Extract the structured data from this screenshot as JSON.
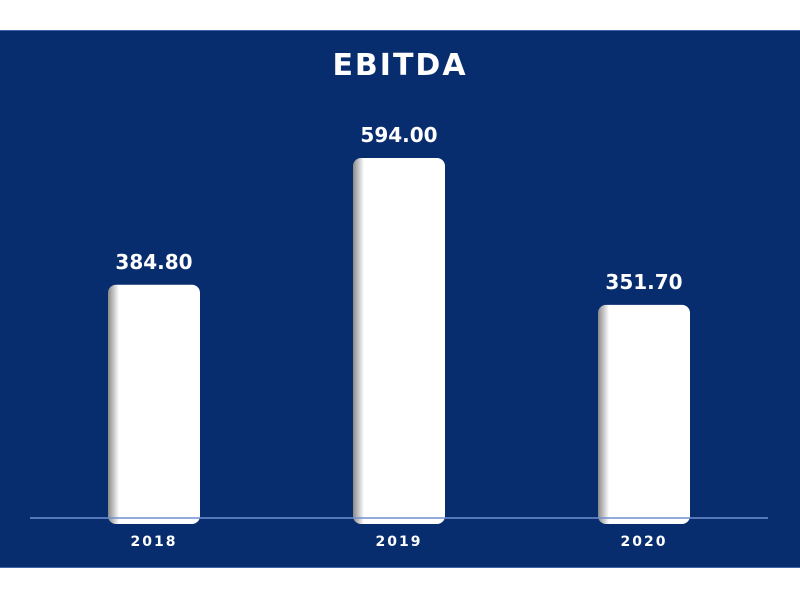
{
  "chart_data": {
    "type": "bar",
    "title": "EBITDA",
    "categories": [
      "2018",
      "2019",
      "2020"
    ],
    "values": [
      384.8,
      594.0,
      351.7
    ],
    "value_labels": [
      "384.80",
      "594.00",
      "351.70"
    ],
    "xlabel": "",
    "ylabel": "",
    "ylim": [
      0,
      660
    ],
    "grid": false,
    "legend": "none",
    "colors": {
      "background": "#082d6e",
      "bar": "#ffffff",
      "axis": "#6f8fd0",
      "text": "#ffffff"
    }
  }
}
